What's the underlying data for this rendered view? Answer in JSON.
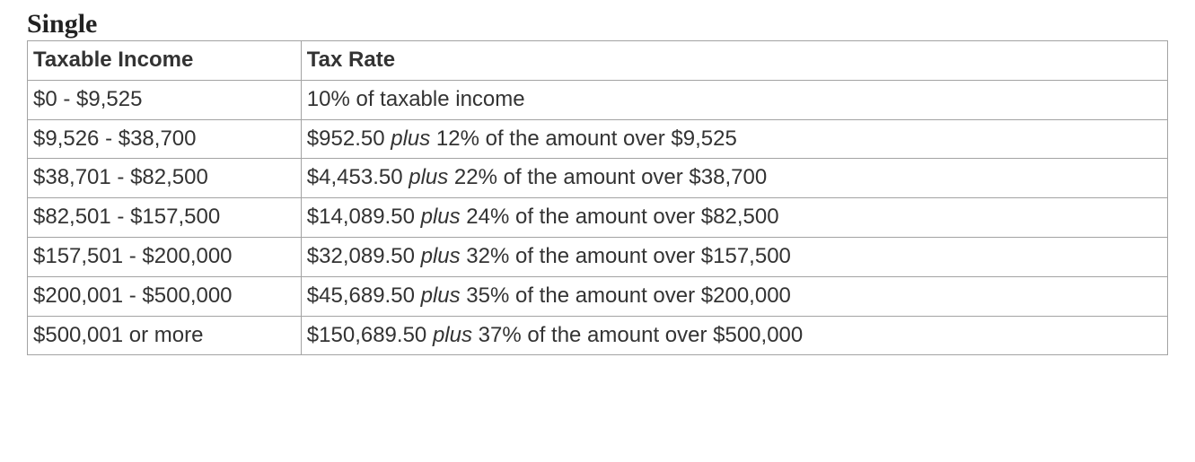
{
  "title": "Single",
  "table": {
    "type": "table",
    "columns": [
      "Taxable Income",
      "Tax Rate"
    ],
    "column_widths_pct": [
      24,
      76
    ],
    "border_color": "#a3a3a3",
    "text_color": "#333333",
    "background_color": "#ffffff",
    "header_fontweight": 700,
    "body_fontsize_pt": 18,
    "title_font_family": "Times New Roman",
    "title_fontsize_pt": 22,
    "rows": [
      {
        "income": "$0 - $9,525",
        "rate_prefix": "10% of taxable income",
        "rate_plus": "",
        "rate_suffix": ""
      },
      {
        "income": "$9,526 - $38,700",
        "rate_prefix": "$952.50 ",
        "rate_plus": "plus",
        "rate_suffix": " 12% of the amount over $9,525"
      },
      {
        "income": "$38,701 - $82,500",
        "rate_prefix": "$4,453.50 ",
        "rate_plus": "plus",
        "rate_suffix": " 22% of the amount over $38,700"
      },
      {
        "income": "$82,501 - $157,500",
        "rate_prefix": "$14,089.50 ",
        "rate_plus": "plus",
        "rate_suffix": " 24% of the amount over $82,500"
      },
      {
        "income": "$157,501 - $200,000",
        "rate_prefix": "$32,089.50 ",
        "rate_plus": "plus",
        "rate_suffix": " 32% of the amount over $157,500"
      },
      {
        "income": "$200,001 - $500,000",
        "rate_prefix": "$45,689.50 ",
        "rate_plus": "plus",
        "rate_suffix": " 35% of the amount over $200,000"
      },
      {
        "income": "$500,001 or more",
        "rate_prefix": "$150,689.50 ",
        "rate_plus": "plus",
        "rate_suffix": " 37% of the amount over $500,000"
      }
    ]
  }
}
